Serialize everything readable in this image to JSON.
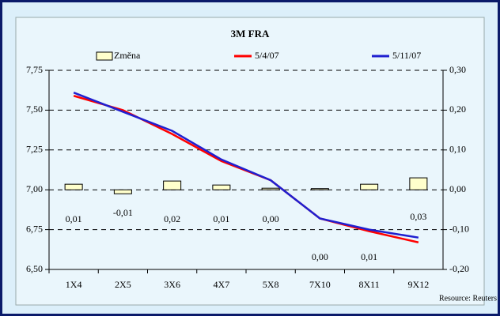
{
  "chart_data": {
    "type": "line",
    "title": "3M FRA",
    "source": "Resource: Reuters",
    "categories": [
      "1X4",
      "2X5",
      "3X6",
      "4X7",
      "5X8",
      "7X10",
      "8X11",
      "9X12"
    ],
    "series": [
      {
        "name": "Změna",
        "type": "bar",
        "axis": "y2",
        "color": "#ffffcc",
        "values": [
          0.014,
          -0.01,
          0.022,
          0.012,
          0.004,
          0.003,
          0.014,
          0.03
        ],
        "value_labels": [
          "0,01",
          "-0,01",
          "0,02",
          "0,01",
          "0,00",
          "0,00",
          "0,01",
          "0,03"
        ]
      },
      {
        "name": "5/4/07",
        "color": "#ff0000",
        "values": [
          7.59,
          7.5,
          7.35,
          7.18,
          7.06,
          6.82,
          6.74,
          6.67
        ]
      },
      {
        "name": "5/11/07",
        "color": "#1f1fd0",
        "values": [
          7.61,
          7.49,
          7.37,
          7.19,
          7.06,
          6.82,
          6.75,
          6.7
        ]
      }
    ],
    "ylim": [
      6.5,
      7.75
    ],
    "yticks": [
      {
        "value": 6.5,
        "label": "6,50"
      },
      {
        "value": 6.75,
        "label": "6,75"
      },
      {
        "value": 7,
        "label": "7,00"
      },
      {
        "value": 7.25,
        "label": "7,25"
      },
      {
        "value": 7.5,
        "label": "7,50"
      },
      {
        "value": 7.75,
        "label": "7,75"
      }
    ],
    "y2lim": [
      -0.2,
      0.3
    ],
    "y2ticks": [
      {
        "value": -0.2,
        "label": "-0,20"
      },
      {
        "value": -0.1,
        "label": "-0,10"
      },
      {
        "value": 0,
        "label": "0,00"
      },
      {
        "value": 0.1,
        "label": "0,10"
      },
      {
        "value": 0.2,
        "label": "0,20"
      },
      {
        "value": 0.3,
        "label": "0,30"
      }
    ],
    "grid": true
  }
}
